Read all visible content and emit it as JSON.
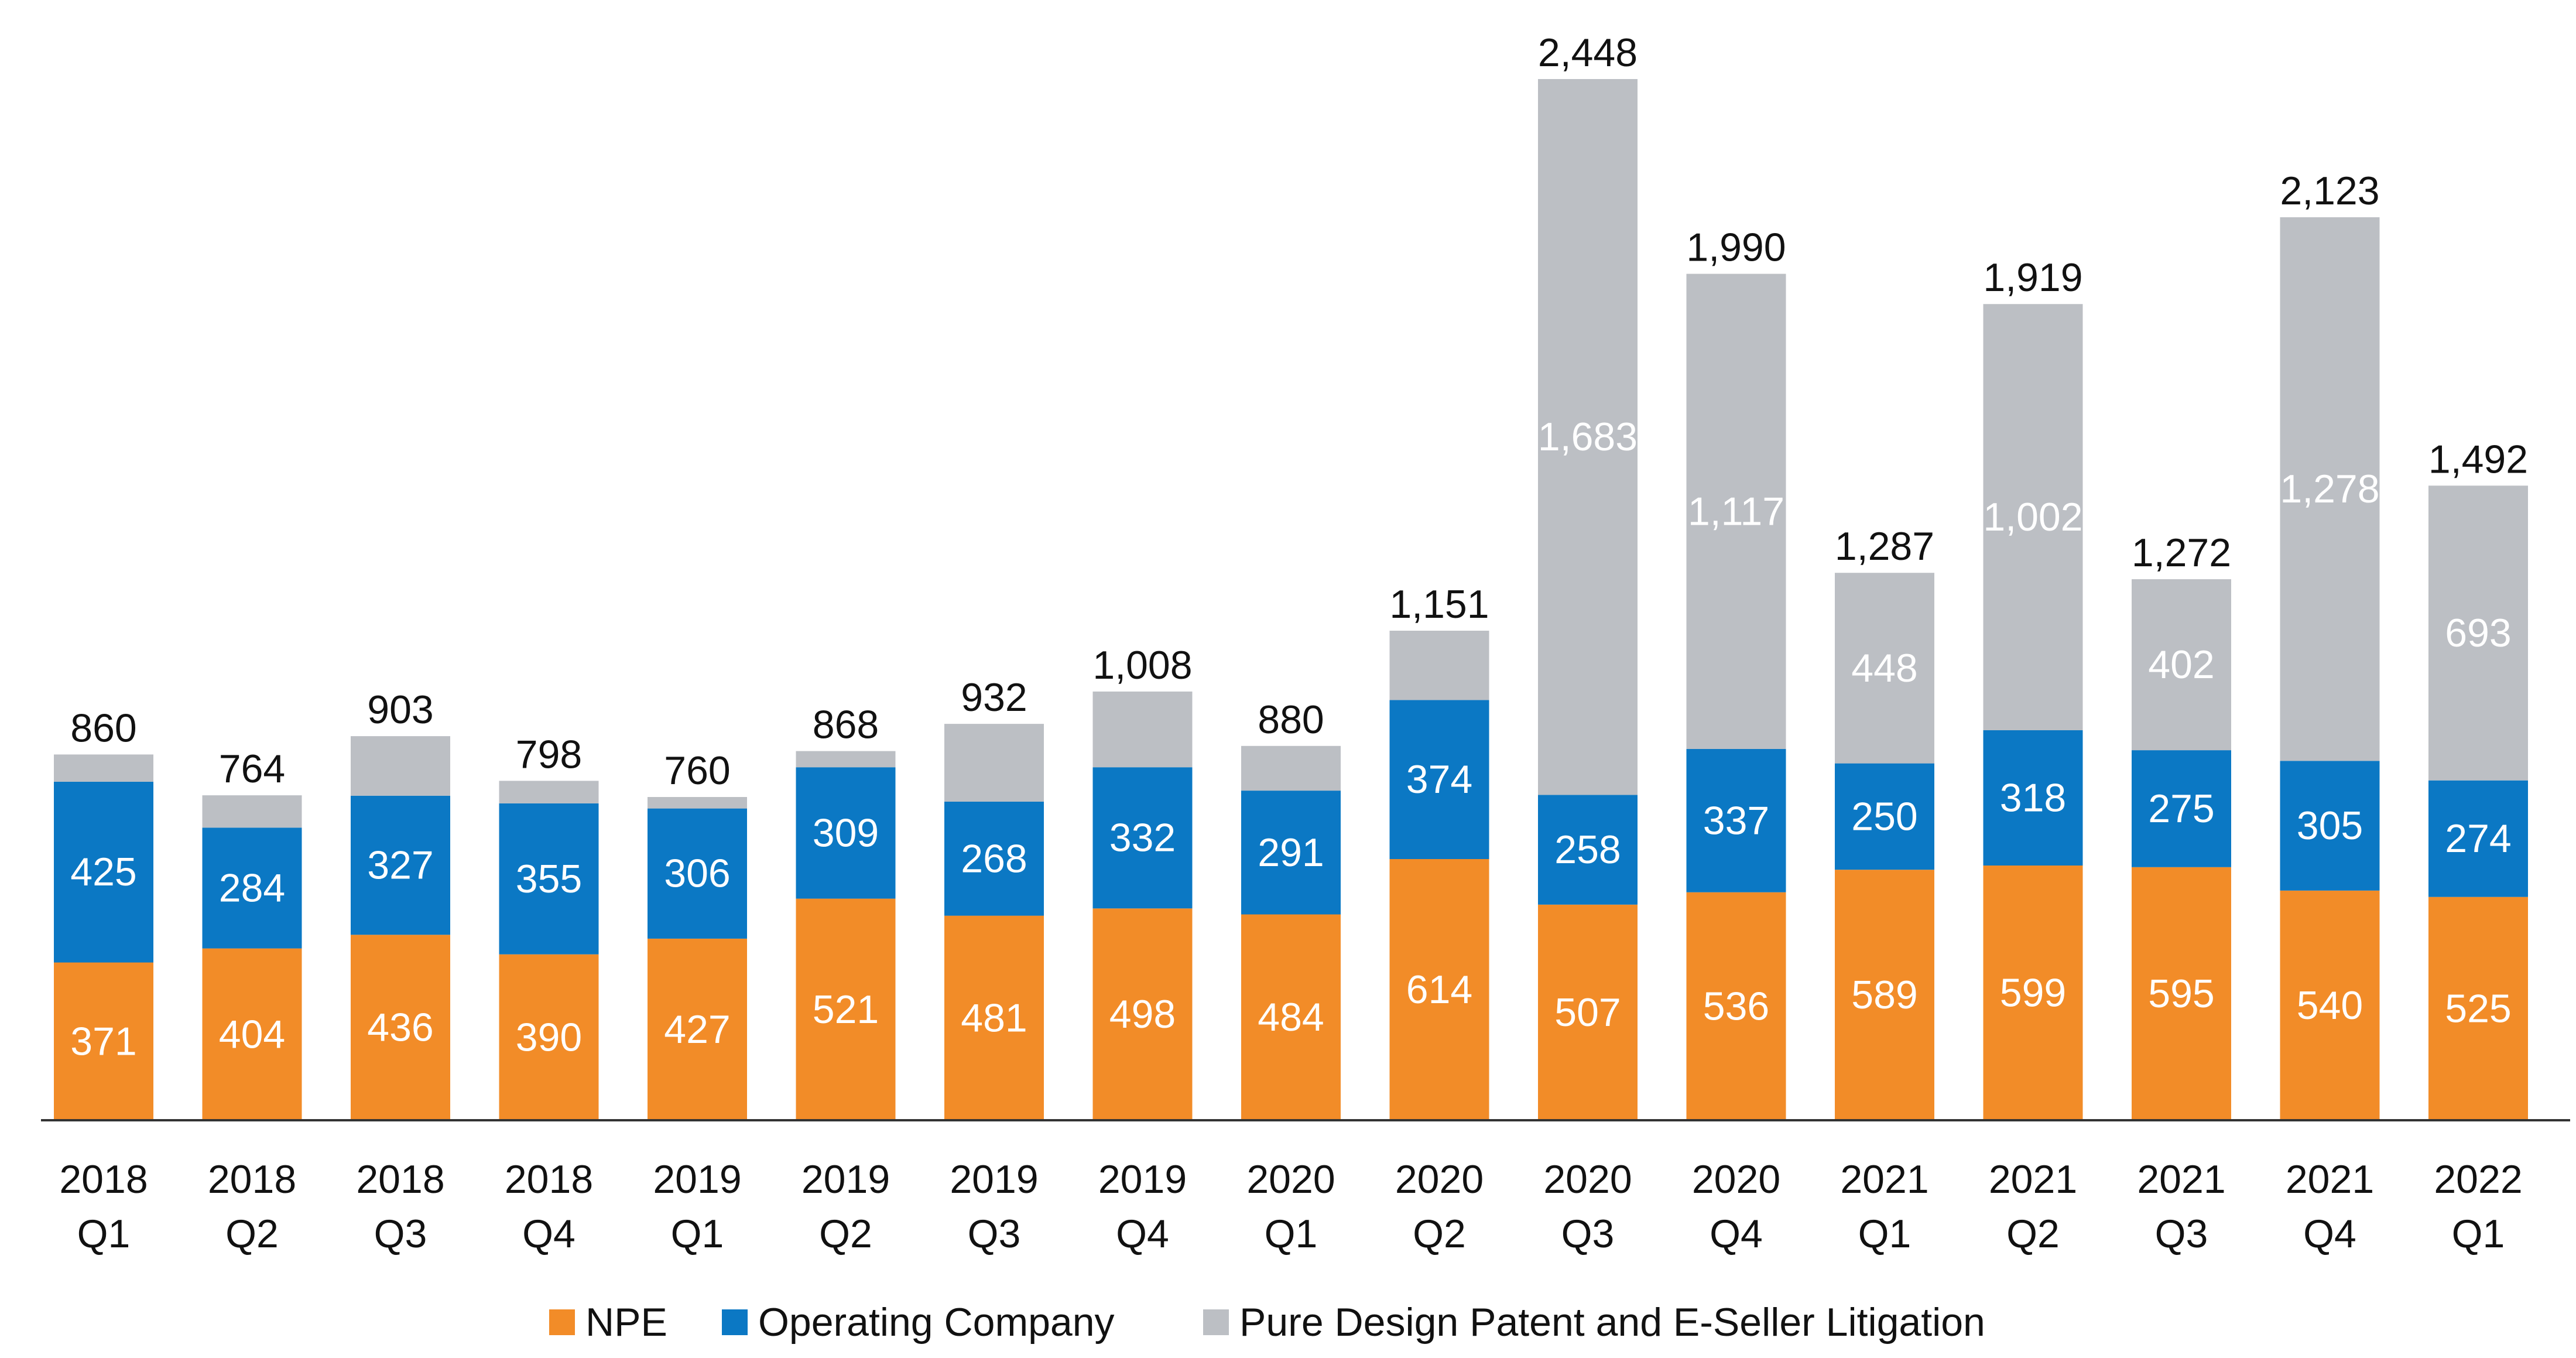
{
  "chart_data": {
    "type": "bar",
    "stacked": true,
    "categories": [
      [
        "2018",
        "Q1"
      ],
      [
        "2018",
        "Q2"
      ],
      [
        "2018",
        "Q3"
      ],
      [
        "2018",
        "Q4"
      ],
      [
        "2019",
        "Q1"
      ],
      [
        "2019",
        "Q2"
      ],
      [
        "2019",
        "Q3"
      ],
      [
        "2019",
        "Q4"
      ],
      [
        "2020",
        "Q1"
      ],
      [
        "2020",
        "Q2"
      ],
      [
        "2020",
        "Q3"
      ],
      [
        "2020",
        "Q4"
      ],
      [
        "2021",
        "Q1"
      ],
      [
        "2021",
        "Q2"
      ],
      [
        "2021",
        "Q3"
      ],
      [
        "2021",
        "Q4"
      ],
      [
        "2022",
        "Q1"
      ]
    ],
    "series": [
      {
        "name": "NPE",
        "color": "#f28c28",
        "values": [
          371,
          404,
          436,
          390,
          427,
          521,
          481,
          498,
          484,
          614,
          507,
          536,
          589,
          599,
          595,
          540,
          525
        ],
        "labels": [
          "371",
          "404",
          "436",
          "390",
          "427",
          "521",
          "481",
          "498",
          "484",
          "614",
          "507",
          "536",
          "589",
          "599",
          "595",
          "540",
          "525"
        ]
      },
      {
        "name": "Operating Company",
        "color": "#0b78c4",
        "values": [
          425,
          284,
          327,
          355,
          306,
          309,
          268,
          332,
          291,
          374,
          258,
          337,
          250,
          318,
          275,
          305,
          274
        ],
        "labels": [
          "425",
          "284",
          "327",
          "355",
          "306",
          "309",
          "268",
          "332",
          "291",
          "374",
          "258",
          "337",
          "250",
          "318",
          "275",
          "305",
          "274"
        ]
      },
      {
        "name": "Pure Design Patent and E-Seller Litigation",
        "color": "#bcbfc4",
        "values": [
          64,
          76,
          140,
          53,
          27,
          38,
          183,
          178,
          105,
          163,
          1683,
          1117,
          448,
          1002,
          402,
          1278,
          693
        ],
        "labels": [
          "",
          "",
          "",
          "",
          "",
          "",
          "",
          "",
          "",
          "",
          "1,683",
          "1,117",
          "448",
          "1,002",
          "402",
          "1,278",
          "693"
        ]
      }
    ],
    "totals": [
      "860",
      "764",
      "903",
      "798",
      "760",
      "868",
      "932",
      "1,008",
      "880",
      "1,151",
      "2,448",
      "1,990",
      "1,287",
      "1,919",
      "1,272",
      "2,123",
      "1,492"
    ],
    "total_values": [
      860,
      764,
      903,
      798,
      760,
      868,
      932,
      1008,
      880,
      1151,
      2448,
      1990,
      1287,
      1919,
      1272,
      2123,
      1492
    ],
    "title": "",
    "xlabel": "",
    "ylabel": "",
    "ylim": [
      0,
      2448
    ],
    "grid": false,
    "legend_position": "bottom-center",
    "axis_color": "#333333"
  }
}
